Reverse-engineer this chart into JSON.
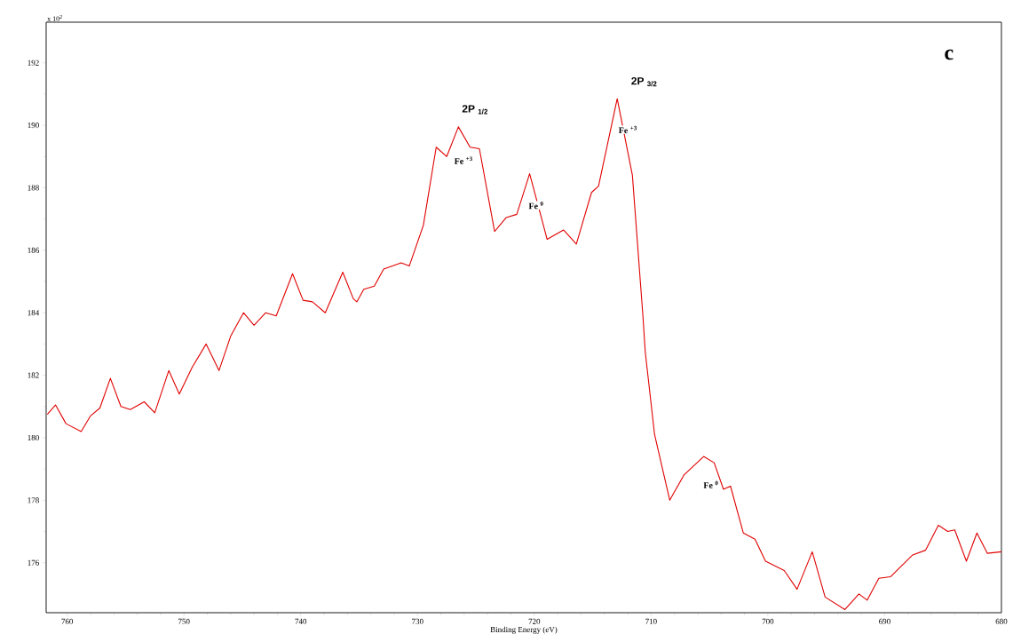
{
  "chart_data": {
    "type": "line",
    "xlabel": "Binding Energy (eV)",
    "ylabel": "x 10$^{2}$",
    "xlim": [
      761.8,
      680
    ],
    "ylim": [
      174.4,
      193.3
    ],
    "xticks": [
      760,
      750,
      740,
      730,
      720,
      710,
      700,
      690,
      680
    ],
    "yticks": [
      176,
      178,
      180,
      182,
      184,
      186,
      188,
      190,
      192
    ],
    "grid": false,
    "marker": "none",
    "line_style": "solid",
    "series": [
      {
        "color": "#e00000",
        "x": [
          761.7,
          761.0,
          760.1,
          758.8,
          758.0,
          757.2,
          756.3,
          755.4,
          754.6,
          753.4,
          752.5,
          751.3,
          750.4,
          749.3,
          748.1,
          747.0,
          746.0,
          744.9,
          744.0,
          743.0,
          742.1,
          740.7,
          739.8,
          739.0,
          737.9,
          736.4,
          735.5,
          735.2,
          734.6,
          733.7,
          732.9,
          731.4,
          730.7,
          729.5,
          728.4,
          727.5,
          726.5,
          725.5,
          724.7,
          723.4,
          722.4,
          721.5,
          720.4,
          718.9,
          717.5,
          716.4,
          715.1,
          714.5,
          712.9,
          711.6,
          710.7,
          710.5,
          709.7,
          708.4,
          707.2,
          705.5,
          704.6,
          703.8,
          703.2,
          702.1,
          701.1,
          700.2,
          698.6,
          697.5,
          696.2,
          695.1,
          693.4,
          692.2,
          691.5,
          690.5,
          689.5,
          687.6,
          686.5,
          685.4,
          684.6,
          684.0,
          683.0,
          682.1,
          681.2,
          680.0
        ],
        "values": [
          180.75,
          181.05,
          180.45,
          180.2,
          180.7,
          180.95,
          181.9,
          181.0,
          180.9,
          181.15,
          180.8,
          182.15,
          181.4,
          182.25,
          183.0,
          182.15,
          183.25,
          184.0,
          183.6,
          184.0,
          183.9,
          185.25,
          184.4,
          184.35,
          184.0,
          185.3,
          184.45,
          184.35,
          184.75,
          184.85,
          185.4,
          185.6,
          185.5,
          186.8,
          189.3,
          189.0,
          189.95,
          189.3,
          189.25,
          186.6,
          187.05,
          187.15,
          188.45,
          186.35,
          186.65,
          186.2,
          187.85,
          188.05,
          190.85,
          188.4,
          183.9,
          182.75,
          180.1,
          178.0,
          178.8,
          179.4,
          179.2,
          178.35,
          178.45,
          176.95,
          176.75,
          176.05,
          175.75,
          175.15,
          176.35,
          174.9,
          174.5,
          175.0,
          174.8,
          175.5,
          175.55,
          176.25,
          176.4,
          177.2,
          177.0,
          177.05,
          176.05,
          176.95,
          176.3,
          176.35
        ]
      }
    ],
    "annotations": [
      "2P $_{1/2}$",
      "2P $_{3/2}$",
      "Fe $^{+3}$",
      "Fe $^{+3}$",
      "Fe $^{0}$",
      "Fe $^{0}$",
      "c"
    ]
  }
}
